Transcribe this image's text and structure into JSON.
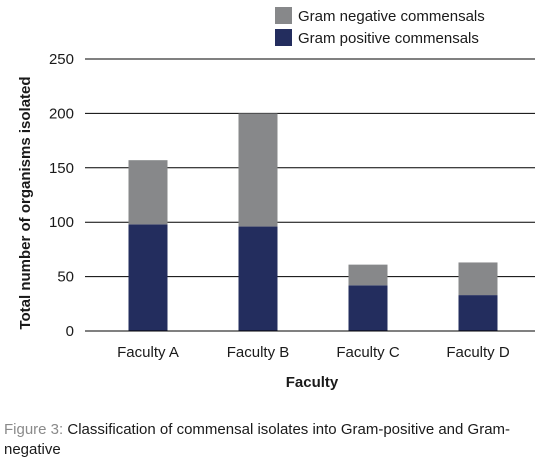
{
  "chart_data": {
    "type": "bar",
    "stacked": true,
    "categories": [
      "Faculty A",
      "Faculty B",
      "Faculty C",
      "Faculty D"
    ],
    "series": [
      {
        "name": "Gram positive commensals",
        "color": "#232d5e",
        "values": [
          98,
          96,
          42,
          33
        ]
      },
      {
        "name": "Gram negative commensals",
        "color": "#87888a",
        "values": [
          59,
          104,
          19,
          30
        ]
      }
    ],
    "xlabel": "Faculty",
    "ylabel": "Total number of organisms isolated",
    "ylim": [
      0,
      250
    ],
    "yticks": [
      "0",
      "50",
      "100",
      "150",
      "200",
      "250"
    ],
    "grid": true,
    "legend": "top-right"
  },
  "caption": {
    "label": "Figure 3:",
    "text": " Classification of commensal isolates into Gram-positive and Gram-negative"
  }
}
